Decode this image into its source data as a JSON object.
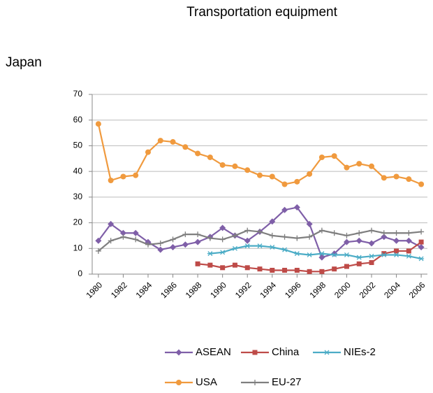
{
  "chart_data": {
    "type": "line",
    "title": "Transportation equipment",
    "subtitle": "Japan",
    "x": [
      1980,
      1981,
      1982,
      1983,
      1984,
      1985,
      1986,
      1987,
      1988,
      1989,
      1990,
      1991,
      1992,
      1993,
      1994,
      1995,
      1996,
      1997,
      1998,
      1999,
      2000,
      2001,
      2002,
      2003,
      2004,
      2005,
      2006
    ],
    "xlim": [
      1979.5,
      2006.5
    ],
    "xticks": [
      1980,
      1982,
      1984,
      1986,
      1988,
      1990,
      1992,
      1994,
      1996,
      1998,
      2000,
      2002,
      2004,
      2006
    ],
    "ylim": [
      0,
      70
    ],
    "yticks": [
      0,
      10,
      20,
      30,
      40,
      50,
      60,
      70
    ],
    "grid": true,
    "legend": "bottom",
    "series": [
      {
        "name": "ASEAN",
        "color": "#7f5fa8",
        "marker": "diamond",
        "values": [
          13,
          19.5,
          16,
          16,
          12.5,
          9.5,
          10.5,
          11.5,
          12.5,
          14.5,
          18,
          15,
          13,
          16.5,
          20.5,
          25,
          26,
          19.5,
          6.5,
          8,
          12.5,
          13,
          12,
          14.5,
          13,
          13,
          10.5
        ]
      },
      {
        "name": "China",
        "color": "#be4b48",
        "marker": "square",
        "values": [
          null,
          null,
          null,
          null,
          null,
          null,
          null,
          null,
          4,
          3.5,
          2.5,
          3.5,
          2.5,
          2,
          1.5,
          1.5,
          1.5,
          1,
          1,
          2,
          3,
          4,
          4.5,
          8,
          9,
          9,
          12.5
        ]
      },
      {
        "name": "NIEs-2",
        "color": "#4bacc6",
        "marker": "asterisk",
        "values": [
          null,
          null,
          null,
          null,
          null,
          null,
          null,
          null,
          null,
          8,
          8.5,
          10,
          11,
          11,
          10.5,
          9.5,
          8,
          7.5,
          8,
          7.5,
          7.5,
          6.5,
          7,
          7.5,
          7.5,
          7,
          6
        ]
      },
      {
        "name": "USA",
        "color": "#f09a3e",
        "marker": "circle",
        "values": [
          58.5,
          36.5,
          38,
          38.5,
          47.5,
          52,
          51.5,
          49.5,
          47,
          45.5,
          42.5,
          42,
          40.5,
          38.5,
          38,
          35,
          36,
          39,
          45.5,
          46,
          41.5,
          43,
          42,
          37.5,
          38,
          37,
          35
        ]
      },
      {
        "name": "EU-27",
        "color": "#7f7f7f",
        "marker": "plus",
        "values": [
          9,
          13,
          14.5,
          13.5,
          11.5,
          12,
          13.5,
          15.5,
          15.5,
          14,
          13.5,
          15,
          17,
          16.5,
          15,
          14.5,
          14,
          14.5,
          17,
          16,
          15,
          16,
          17,
          16,
          16,
          16,
          16.5
        ]
      }
    ]
  }
}
